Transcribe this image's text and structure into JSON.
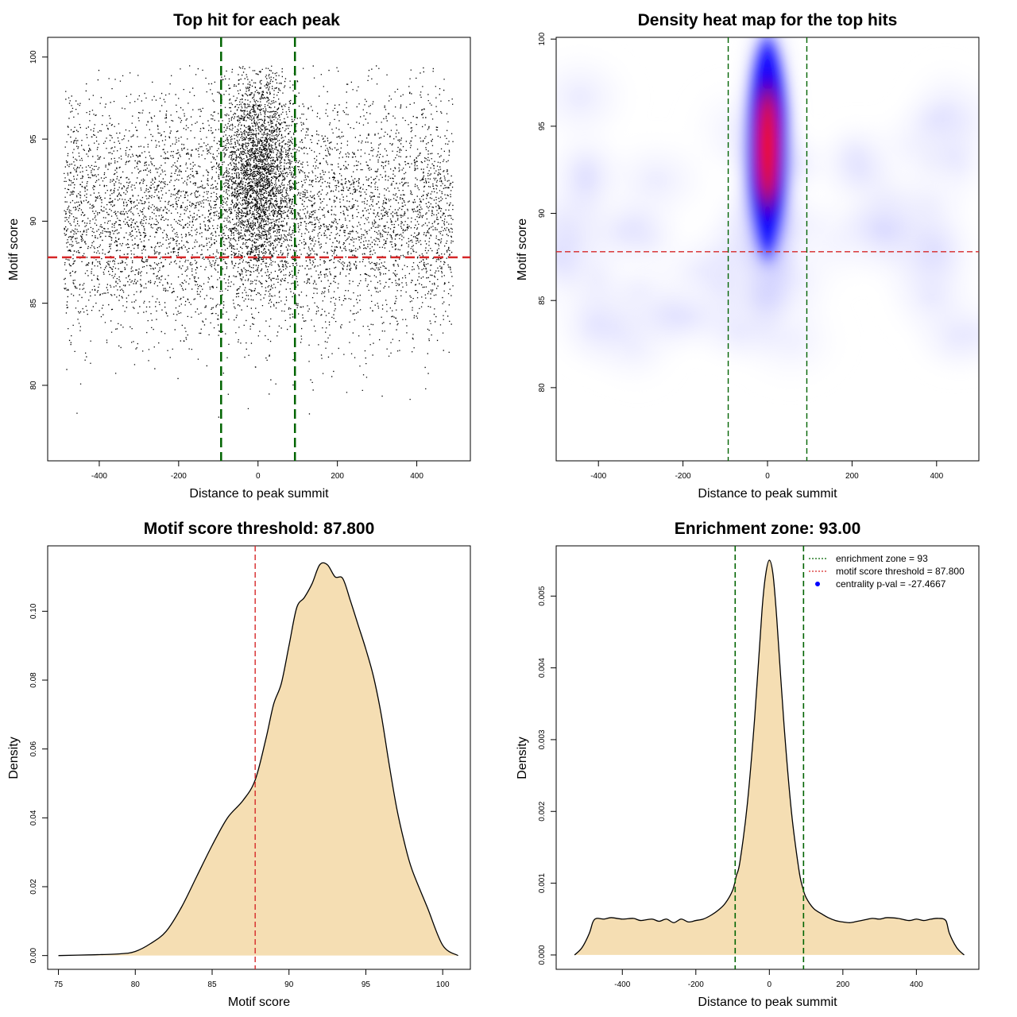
{
  "chart_data": [
    {
      "id": "scatter",
      "type": "scatter",
      "title": "Top hit for each peak",
      "xlabel": "Distance to peak summit",
      "ylabel": "Motif score",
      "xlim": [
        -530,
        535
      ],
      "ylim": [
        75.4,
        101.2
      ],
      "xticks": [
        -400,
        -200,
        0,
        200,
        400
      ],
      "yticks": [
        80,
        85,
        90,
        95,
        100
      ],
      "grid": false,
      "enrichment_lines_x": [
        -93,
        93
      ],
      "threshold_line_y": 87.8,
      "enrichment_color": "#006400",
      "threshold_color": "#d62728",
      "point_color": "#000000",
      "approx_points": 14000,
      "distribution": {
        "x_range": [
          -490,
          490
        ],
        "y_range": [
          76,
          100
        ],
        "background_y_mean": 90.3,
        "background_y_sd": 3.6,
        "center_x_mean": 0,
        "center_x_sd": 45,
        "center_y_mean": 93.0,
        "center_y_sd": 3.0
      }
    },
    {
      "id": "heatmap",
      "type": "heatmap",
      "title": "Density heat map for the top hits",
      "xlabel": "Distance to peak summit",
      "ylabel": "Motif score",
      "xlim": [
        -500,
        500
      ],
      "ylim": [
        75.8,
        100.1
      ],
      "xticks": [
        -400,
        -200,
        0,
        200,
        400
      ],
      "yticks": [
        80,
        85,
        90,
        95,
        100
      ],
      "enrichment_lines_x": [
        -93,
        93
      ],
      "threshold_line_y": 87.8,
      "colors": [
        "#ffffff",
        "#d8d8ff",
        "#0000ff",
        "#ff0000"
      ],
      "peak": {
        "x": 0,
        "y": 93.8,
        "x_sd": 34,
        "y_sd": 2.6
      }
    },
    {
      "id": "score_density",
      "type": "area",
      "title": "Motif score threshold: 87.800",
      "xlabel": "Motif score",
      "ylabel": "Density",
      "xlim": [
        74.3,
        101.8
      ],
      "ylim": [
        -0.004,
        0.119
      ],
      "xticks": [
        75,
        80,
        85,
        90,
        95,
        100
      ],
      "yticks": [
        0.0,
        0.02,
        0.04,
        0.06,
        0.08,
        0.1
      ],
      "ytick_labels": [
        "0.00",
        "0.02",
        "0.04",
        "0.06",
        "0.08",
        "0.10"
      ],
      "threshold_line_x": 87.8,
      "fill_color": "#f5deb3",
      "line_color": "#000000",
      "threshold_color": "#d62728",
      "x": [
        75,
        77,
        79,
        80,
        81,
        82,
        83,
        84,
        85,
        86,
        87,
        87.8,
        88.5,
        89,
        89.5,
        90,
        90.5,
        91,
        91.5,
        92,
        92.5,
        93,
        93.5,
        94,
        94.5,
        95,
        95.5,
        96,
        96.5,
        97,
        97.5,
        98,
        99,
        100,
        101
      ],
      "y": [
        0.0,
        0.0002,
        0.0005,
        0.0012,
        0.0035,
        0.007,
        0.014,
        0.023,
        0.032,
        0.04,
        0.045,
        0.051,
        0.063,
        0.073,
        0.079,
        0.09,
        0.101,
        0.104,
        0.108,
        0.1135,
        0.1135,
        0.11,
        0.1095,
        0.103,
        0.096,
        0.089,
        0.081,
        0.07,
        0.056,
        0.043,
        0.033,
        0.025,
        0.014,
        0.003,
        0.0
      ]
    },
    {
      "id": "distance_density",
      "type": "area",
      "title": "Enrichment zone: 93.00",
      "xlabel": "Distance to peak summit",
      "ylabel": "Density",
      "xlim": [
        -580,
        570
      ],
      "ylim": [
        -0.0002,
        0.0057
      ],
      "xticks": [
        -400,
        -200,
        0,
        200,
        400
      ],
      "yticks": [
        0.0,
        0.001,
        0.002,
        0.003,
        0.004,
        0.005
      ],
      "ytick_labels": [
        "0.000",
        "0.001",
        "0.002",
        "0.003",
        "0.004",
        "0.005"
      ],
      "enrichment_lines_x": [
        -93,
        93
      ],
      "fill_color": "#f5deb3",
      "line_color": "#000000",
      "enrichment_color": "#006400",
      "x": [
        -530,
        -510,
        -490,
        -480,
        -470,
        -450,
        -430,
        -400,
        -370,
        -350,
        -320,
        -300,
        -280,
        -260,
        -240,
        -220,
        -200,
        -180,
        -160,
        -140,
        -120,
        -100,
        -90,
        -80,
        -60,
        -40,
        -20,
        -10,
        0,
        10,
        20,
        40,
        60,
        80,
        90,
        100,
        120,
        140,
        160,
        180,
        200,
        220,
        240,
        260,
        280,
        300,
        320,
        350,
        380,
        400,
        420,
        440,
        460,
        480,
        490,
        510,
        530
      ],
      "y": [
        0.0,
        0.0001,
        0.0003,
        0.00046,
        0.00051,
        0.0005,
        0.00052,
        0.0005,
        0.00051,
        0.00048,
        0.0005,
        0.00047,
        0.0005,
        0.00045,
        0.0005,
        0.00046,
        0.00048,
        0.0005,
        0.00055,
        0.00062,
        0.00072,
        0.0009,
        0.0011,
        0.0013,
        0.0021,
        0.0033,
        0.0048,
        0.0053,
        0.0055,
        0.0053,
        0.0047,
        0.0032,
        0.002,
        0.0012,
        0.00095,
        0.0008,
        0.00065,
        0.00058,
        0.00052,
        0.00048,
        0.00046,
        0.00045,
        0.00047,
        0.00049,
        0.00051,
        0.0005,
        0.00052,
        0.00051,
        0.00048,
        0.0005,
        0.00048,
        0.0005,
        0.00051,
        0.00048,
        0.0003,
        0.0001,
        0.0
      ],
      "legend": {
        "placement": "top-right",
        "entries": [
          {
            "label": "enrichment zone = 93",
            "kind": "dotted-line",
            "color": "#006400"
          },
          {
            "label": "motif score threshold = 87.800",
            "kind": "dotted-line",
            "color": "#d62728"
          },
          {
            "label": "centrality p-val = -27.4667",
            "kind": "point",
            "color": "#0000ff"
          }
        ]
      }
    }
  ]
}
